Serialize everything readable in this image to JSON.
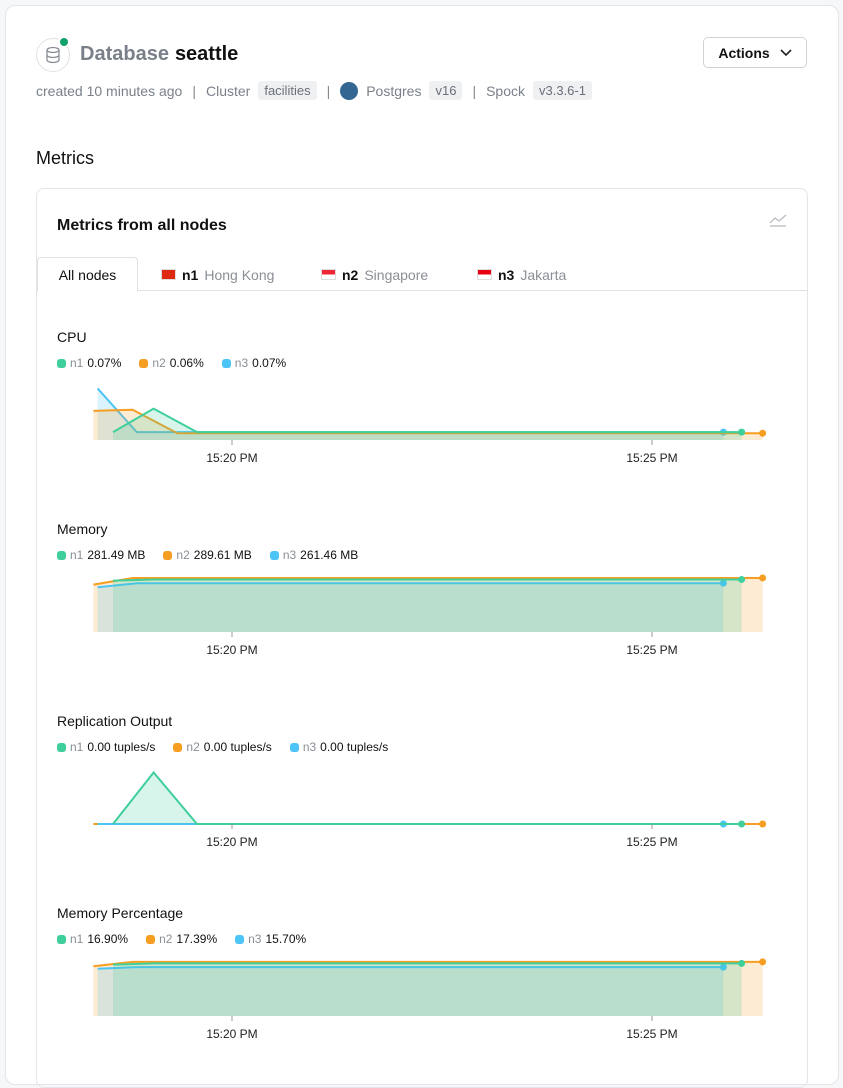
{
  "header": {
    "kind": "Database",
    "name": "seattle",
    "status_color": "#12a06b",
    "created": "created 10 minutes ago",
    "cluster_label": "Cluster",
    "cluster": "facilities",
    "engine": "Postgres",
    "engine_version": "v16",
    "extension": "Spock",
    "extension_version": "v3.3.6-1",
    "actions_label": "Actions"
  },
  "metrics_heading": "Metrics",
  "card_title": "Metrics from all nodes",
  "tabs": [
    {
      "label": "All nodes",
      "active": true
    },
    {
      "id": "n1",
      "city": "Hong Kong",
      "flag": "hong-kong-flag"
    },
    {
      "id": "n2",
      "city": "Singapore",
      "flag": "singapore-flag"
    },
    {
      "id": "n3",
      "city": "Jakarta",
      "flag": "indonesia-flag"
    }
  ],
  "colors": {
    "n1": "#3ecf9b",
    "n2": "#f59e22",
    "n3": "#4cc4f5"
  },
  "x_ticks": [
    "15:20 PM",
    "15:25 PM"
  ],
  "chart_data": [
    {
      "type": "area",
      "title": "CPU",
      "legend": [
        {
          "node": "n1",
          "value": "0.07%"
        },
        {
          "node": "n2",
          "value": "0.06%"
        },
        {
          "node": "n3",
          "value": "0.07%"
        }
      ],
      "ylim": [
        0,
        0.5
      ],
      "series": [
        {
          "name": "n3",
          "points": [
            [
              "15:18:24",
              0.46
            ],
            [
              "15:18:52",
              0.07
            ],
            [
              "15:19:21",
              0.07
            ],
            [
              "15:25:51",
              0.07
            ]
          ]
        },
        {
          "name": "n2",
          "points": [
            [
              "15:18:21",
              0.26
            ],
            [
              "15:18:49",
              0.27
            ],
            [
              "15:19:21",
              0.06
            ],
            [
              "15:26:19",
              0.06
            ]
          ]
        },
        {
          "name": "n1",
          "points": [
            [
              "15:18:35",
              0.07
            ],
            [
              "15:19:04",
              0.28
            ],
            [
              "15:19:35",
              0.07
            ],
            [
              "15:26:04",
              0.07
            ]
          ]
        }
      ]
    },
    {
      "type": "area",
      "title": "Memory",
      "legend": [
        {
          "node": "n1",
          "value": "281.49 MB"
        },
        {
          "node": "n2",
          "value": "289.61 MB"
        },
        {
          "node": "n3",
          "value": "261.46 MB"
        }
      ],
      "ylim": [
        0,
        300
      ],
      "series": [
        {
          "name": "n2",
          "points": [
            [
              "15:18:21",
              254
            ],
            [
              "15:18:49",
              289
            ],
            [
              "15:26:19",
              289.61
            ]
          ]
        },
        {
          "name": "n3",
          "points": [
            [
              "15:18:24",
              240
            ],
            [
              "15:18:52",
              261
            ],
            [
              "15:25:51",
              261.46
            ]
          ]
        },
        {
          "name": "n1",
          "points": [
            [
              "15:18:35",
              275
            ],
            [
              "15:19:04",
              281
            ],
            [
              "15:26:04",
              281.49
            ]
          ]
        }
      ]
    },
    {
      "type": "area",
      "title": "Replication Output",
      "legend": [
        {
          "node": "n1",
          "value": "0.00 tuples/s"
        },
        {
          "node": "n2",
          "value": "0.00 tuples/s"
        },
        {
          "node": "n3",
          "value": "0.00 tuples/s"
        }
      ],
      "ylim": [
        0,
        5
      ],
      "series": [
        {
          "name": "n2",
          "points": [
            [
              "15:18:21",
              0
            ],
            [
              "15:19:35",
              0
            ],
            [
              "15:26:19",
              0
            ]
          ]
        },
        {
          "name": "n3",
          "points": [
            [
              "15:18:24",
              0
            ],
            [
              "15:25:51",
              0
            ]
          ]
        },
        {
          "name": "n1",
          "points": [
            [
              "15:18:35",
              0
            ],
            [
              "15:19:04",
              4.6
            ],
            [
              "15:19:35",
              0
            ],
            [
              "15:26:04",
              0
            ]
          ]
        }
      ]
    },
    {
      "type": "area",
      "title": "Memory Percentage",
      "legend": [
        {
          "node": "n1",
          "value": "16.90%"
        },
        {
          "node": "n2",
          "value": "17.39%"
        },
        {
          "node": "n3",
          "value": "15.70%"
        }
      ],
      "ylim": [
        0,
        18
      ],
      "series": [
        {
          "name": "n2",
          "points": [
            [
              "15:18:21",
              16.0
            ],
            [
              "15:18:49",
              17.39
            ],
            [
              "15:26:19",
              17.39
            ]
          ]
        },
        {
          "name": "n3",
          "points": [
            [
              "15:18:24",
              15.2
            ],
            [
              "15:18:52",
              15.7
            ],
            [
              "15:25:51",
              15.7
            ]
          ]
        },
        {
          "name": "n1",
          "points": [
            [
              "15:18:35",
              16.5
            ],
            [
              "15:19:04",
              16.9
            ],
            [
              "15:26:04",
              16.9
            ]
          ]
        }
      ]
    }
  ]
}
